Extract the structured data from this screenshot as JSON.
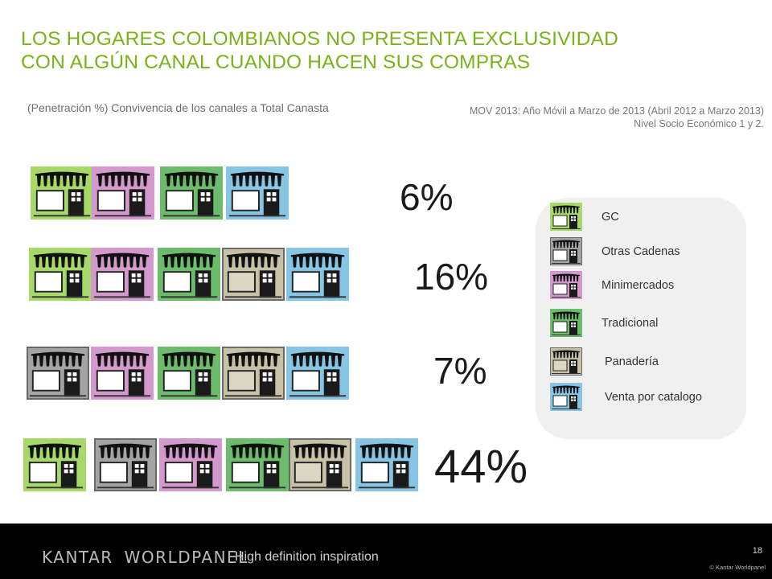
{
  "title": {
    "line1": "LOS HOGARES COLOMBIANOS NO PRESENTA EXCLUSIVIDAD",
    "line2": "CON ALGÚN CANAL CUANDO HACEN SUS COMPRAS"
  },
  "subtitle": "(Penetración %) Convivencia de los canales a Total  Canasta",
  "note": {
    "line1": "MOV 2013: Año Móvil a Marzo de 2013 (Abril 2012 a Marzo 2013)",
    "line2": "Nivel Socio Económico 1 y 2."
  },
  "colors": {
    "gc": "#a6d86a",
    "otras_cadenas": "#a4a4a4",
    "minimercados": "#d398cc",
    "tradicional": "#6dbb6d",
    "panaderia": "#c7c1a8",
    "venta_catalogo": "#86c5e3",
    "title": "#7ab21a"
  },
  "rows": [
    {
      "percent": "6%",
      "stores": [
        "gc-store-icon",
        "minimercados-store-icon",
        "tradicional-store-icon",
        "venta-catalogo-store-icon"
      ]
    },
    {
      "percent": "16%",
      "stores": [
        "gc-store-icon",
        "minimercados-store-icon",
        "tradicional-store-icon",
        "panaderia-store-icon",
        "venta-catalogo-store-icon"
      ]
    },
    {
      "percent": "7%",
      "stores": [
        "otras-cadenas-store-icon",
        "minimercados-store-icon",
        "tradicional-store-icon",
        "panaderia-store-icon",
        "venta-catalogo-store-icon"
      ]
    },
    {
      "percent": "44%",
      "stores": [
        "gc-store-icon",
        "otras-cadenas-store-icon",
        "minimercados-store-icon",
        "tradicional-store-icon",
        "panaderia-store-icon",
        "venta-catalogo-store-icon"
      ]
    }
  ],
  "legend": [
    {
      "label": "GC",
      "icon": "gc-store-icon"
    },
    {
      "label": "Otras Cadenas",
      "icon": "otras-cadenas-store-icon"
    },
    {
      "label": "Minimercados",
      "icon": "minimercados-store-icon"
    },
    {
      "label": "Tradicional",
      "icon": "tradicional-store-icon"
    },
    {
      "label": "Panadería",
      "icon": "panaderia-store-icon"
    },
    {
      "label": "Venta por catalogo",
      "icon": "venta-catalogo-store-icon"
    }
  ],
  "footer": {
    "brand_part1": "KANTAR",
    "brand_part2": "WORLDPANEL",
    "tagline": "High definition inspiration",
    "page_number": "18",
    "copyright": "© Kantar Worldpanel"
  }
}
